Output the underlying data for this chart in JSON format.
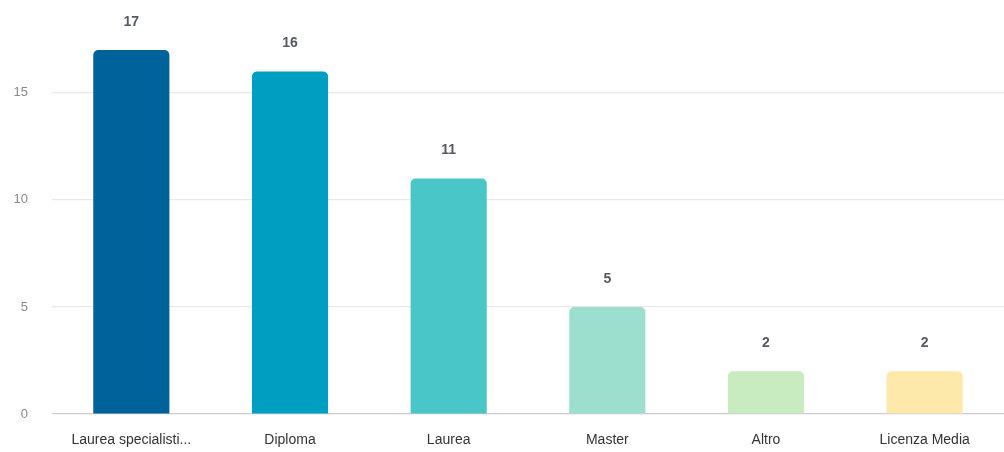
{
  "chart_data": {
    "type": "bar",
    "categories": [
      "Laurea specialisti...",
      "Diploma",
      "Laurea",
      "Master",
      "Altro",
      "Licenza Media"
    ],
    "values": [
      17,
      16,
      11,
      5,
      2,
      2
    ],
    "colors": [
      "#00629b",
      "#009fc2",
      "#48c6c8",
      "#9ddfcf",
      "#c8ebc0",
      "#fde9aa"
    ],
    "ylim": [
      0,
      17
    ],
    "yticks": [
      0,
      5,
      10,
      15
    ],
    "grid": "y",
    "legend": false,
    "data_labels": true
  }
}
